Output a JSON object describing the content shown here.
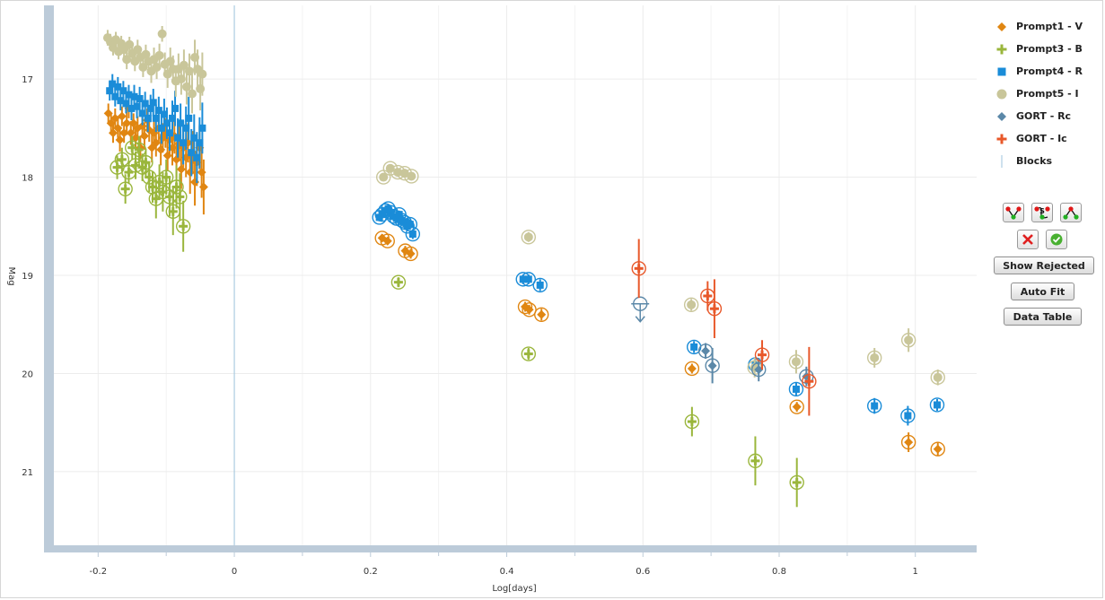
{
  "chart_data": {
    "type": "scatter",
    "title": "",
    "xlabel": "Log[days]",
    "ylabel": "Mag",
    "xlim": [
      -0.265,
      1.09
    ],
    "ylim": [
      21.75,
      16.25
    ],
    "y_inverted": true,
    "x_ticks": [
      "-0.2",
      "0",
      "0.2",
      "0.4",
      "0.6",
      "0.8",
      "1"
    ],
    "y_ticks": [
      "17",
      "18",
      "19",
      "20",
      "21"
    ],
    "grid": true,
    "legend_position": "right",
    "blocks_at": [
      0
    ],
    "series": [
      {
        "name": "Prompt1 - V",
        "color": "#e08612",
        "marker": "diamond",
        "points": [
          [
            -0.185,
            17.35,
            0.1
          ],
          [
            -0.181,
            17.45,
            0.1
          ],
          [
            -0.178,
            17.55,
            0.1
          ],
          [
            -0.175,
            17.4,
            0.1
          ],
          [
            -0.171,
            17.5,
            0.1
          ],
          [
            -0.168,
            17.62,
            0.12
          ],
          [
            -0.165,
            17.38,
            0.1
          ],
          [
            -0.162,
            17.55,
            0.1
          ],
          [
            -0.158,
            17.45,
            0.12
          ],
          [
            -0.155,
            17.3,
            0.1
          ],
          [
            -0.152,
            17.55,
            0.12
          ],
          [
            -0.148,
            17.45,
            0.1
          ],
          [
            -0.145,
            17.6,
            0.12
          ],
          [
            -0.142,
            17.5,
            0.12
          ],
          [
            -0.138,
            17.7,
            0.12
          ],
          [
            -0.135,
            17.48,
            0.12
          ],
          [
            -0.132,
            17.58,
            0.14
          ],
          [
            -0.128,
            17.42,
            0.12
          ],
          [
            -0.125,
            17.52,
            0.12
          ],
          [
            -0.121,
            17.7,
            0.15
          ],
          [
            -0.118,
            17.55,
            0.14
          ],
          [
            -0.115,
            17.65,
            0.14
          ],
          [
            -0.111,
            17.5,
            0.14
          ],
          [
            -0.108,
            17.72,
            0.16
          ],
          [
            -0.105,
            17.6,
            0.15
          ],
          [
            -0.101,
            17.55,
            0.15
          ],
          [
            -0.098,
            17.78,
            0.16
          ],
          [
            -0.095,
            17.62,
            0.16
          ],
          [
            -0.091,
            17.7,
            0.18
          ],
          [
            -0.088,
            17.58,
            0.18
          ],
          [
            -0.085,
            17.82,
            0.18
          ],
          [
            -0.081,
            17.66,
            0.18
          ],
          [
            -0.078,
            17.92,
            0.2
          ],
          [
            -0.075,
            17.7,
            0.2
          ],
          [
            -0.071,
            17.8,
            0.2
          ],
          [
            -0.068,
            17.65,
            0.2
          ],
          [
            -0.065,
            17.95,
            0.22
          ],
          [
            -0.061,
            17.75,
            0.22
          ],
          [
            -0.058,
            18.05,
            0.24
          ],
          [
            -0.055,
            17.85,
            0.24
          ],
          [
            -0.051,
            17.7,
            0.22
          ],
          [
            -0.048,
            17.95,
            0.26
          ],
          [
            -0.045,
            18.1,
            0.28
          ],
          [
            0.217,
            18.62,
            0.04
          ],
          [
            0.225,
            18.65,
            0.04
          ],
          [
            0.251,
            18.75,
            0.05
          ],
          [
            0.259,
            18.78,
            0.05
          ],
          [
            0.427,
            19.32,
            0.05
          ],
          [
            0.433,
            19.35,
            0.05
          ],
          [
            0.451,
            19.4,
            0.06
          ],
          [
            0.672,
            19.95,
            0.05
          ],
          [
            0.826,
            20.34,
            0.05
          ],
          [
            0.99,
            20.7,
            0.1
          ],
          [
            1.033,
            20.77,
            0.07
          ]
        ],
        "circled_from": 43
      },
      {
        "name": "Prompt3 - B",
        "color": "#9ab63c",
        "marker": "plus",
        "points": [
          [
            -0.172,
            17.9,
            0.12
          ],
          [
            -0.165,
            17.82,
            0.12
          ],
          [
            -0.16,
            18.12,
            0.15
          ],
          [
            -0.155,
            17.95,
            0.12
          ],
          [
            -0.15,
            17.7,
            0.12
          ],
          [
            -0.145,
            17.88,
            0.14
          ],
          [
            -0.14,
            17.72,
            0.14
          ],
          [
            -0.135,
            17.9,
            0.14
          ],
          [
            -0.13,
            17.85,
            0.14
          ],
          [
            -0.125,
            18.0,
            0.15
          ],
          [
            -0.12,
            18.1,
            0.16
          ],
          [
            -0.115,
            18.22,
            0.2
          ],
          [
            -0.11,
            18.05,
            0.18
          ],
          [
            -0.105,
            18.15,
            0.2
          ],
          [
            -0.1,
            18.0,
            0.18
          ],
          [
            -0.095,
            18.2,
            0.2
          ],
          [
            -0.09,
            18.35,
            0.24
          ],
          [
            -0.085,
            18.1,
            0.22
          ],
          [
            -0.08,
            18.2,
            0.24
          ],
          [
            -0.075,
            18.5,
            0.26
          ],
          [
            0.241,
            19.07,
            0.05
          ],
          [
            0.432,
            19.8,
            0.06
          ],
          [
            0.672,
            20.49,
            0.15
          ],
          [
            0.765,
            20.89,
            0.25
          ],
          [
            0.826,
            21.11,
            0.25
          ]
        ],
        "circled_from": 0
      },
      {
        "name": "Prompt4 - R",
        "color": "#1a8cd8",
        "marker": "square",
        "points": [
          [
            -0.183,
            17.12,
            0.1
          ],
          [
            -0.179,
            17.05,
            0.1
          ],
          [
            -0.175,
            17.18,
            0.1
          ],
          [
            -0.171,
            17.08,
            0.1
          ],
          [
            -0.167,
            17.22,
            0.1
          ],
          [
            -0.163,
            17.12,
            0.1
          ],
          [
            -0.159,
            17.25,
            0.1
          ],
          [
            -0.155,
            17.16,
            0.1
          ],
          [
            -0.151,
            17.3,
            0.12
          ],
          [
            -0.147,
            17.18,
            0.12
          ],
          [
            -0.143,
            17.28,
            0.12
          ],
          [
            -0.139,
            17.2,
            0.12
          ],
          [
            -0.135,
            17.35,
            0.12
          ],
          [
            -0.131,
            17.25,
            0.12
          ],
          [
            -0.127,
            17.4,
            0.14
          ],
          [
            -0.123,
            17.3,
            0.14
          ],
          [
            -0.119,
            17.24,
            0.14
          ],
          [
            -0.115,
            17.4,
            0.14
          ],
          [
            -0.111,
            17.32,
            0.14
          ],
          [
            -0.107,
            17.5,
            0.16
          ],
          [
            -0.103,
            17.36,
            0.16
          ],
          [
            -0.099,
            17.45,
            0.16
          ],
          [
            -0.095,
            17.55,
            0.18
          ],
          [
            -0.091,
            17.4,
            0.18
          ],
          [
            -0.087,
            17.3,
            0.18
          ],
          [
            -0.083,
            17.6,
            0.2
          ],
          [
            -0.079,
            17.45,
            0.2
          ],
          [
            -0.075,
            17.65,
            0.22
          ],
          [
            -0.071,
            17.5,
            0.22
          ],
          [
            -0.067,
            17.4,
            0.22
          ],
          [
            -0.063,
            17.75,
            0.24
          ],
          [
            -0.059,
            17.6,
            0.24
          ],
          [
            -0.055,
            17.8,
            0.26
          ],
          [
            -0.051,
            17.65,
            0.26
          ],
          [
            -0.047,
            17.5,
            0.26
          ],
          [
            0.213,
            18.41,
            0.04
          ],
          [
            0.217,
            18.38,
            0.04
          ],
          [
            0.222,
            18.34,
            0.04
          ],
          [
            0.226,
            18.32,
            0.04
          ],
          [
            0.23,
            18.36,
            0.04
          ],
          [
            0.234,
            18.4,
            0.04
          ],
          [
            0.238,
            18.42,
            0.04
          ],
          [
            0.242,
            18.38,
            0.04
          ],
          [
            0.246,
            18.44,
            0.04
          ],
          [
            0.25,
            18.46,
            0.04
          ],
          [
            0.254,
            18.5,
            0.04
          ],
          [
            0.258,
            18.48,
            0.04
          ],
          [
            0.262,
            18.58,
            0.05
          ],
          [
            0.424,
            19.04,
            0.05
          ],
          [
            0.432,
            19.04,
            0.05
          ],
          [
            0.449,
            19.1,
            0.06
          ],
          [
            0.675,
            19.73,
            0.06
          ],
          [
            0.765,
            19.91,
            0.06
          ],
          [
            0.825,
            20.16,
            0.07
          ],
          [
            0.94,
            20.33,
            0.08
          ],
          [
            0.989,
            20.43,
            0.1
          ],
          [
            1.032,
            20.32,
            0.06
          ]
        ],
        "circled_from": 35
      },
      {
        "name": "Prompt5 - I",
        "color": "#c9c69a",
        "marker": "circle",
        "points": [
          [
            -0.186,
            16.58,
            0.08
          ],
          [
            -0.182,
            16.62,
            0.08
          ],
          [
            -0.178,
            16.68,
            0.08
          ],
          [
            -0.174,
            16.6,
            0.08
          ],
          [
            -0.17,
            16.72,
            0.08
          ],
          [
            -0.166,
            16.64,
            0.08
          ],
          [
            -0.162,
            16.7,
            0.08
          ],
          [
            -0.158,
            16.8,
            0.1
          ],
          [
            -0.154,
            16.65,
            0.08
          ],
          [
            -0.15,
            16.74,
            0.1
          ],
          [
            -0.146,
            16.82,
            0.1
          ],
          [
            -0.142,
            16.7,
            0.1
          ],
          [
            -0.138,
            16.78,
            0.1
          ],
          [
            -0.134,
            16.88,
            0.1
          ],
          [
            -0.13,
            16.75,
            0.1
          ],
          [
            -0.126,
            16.82,
            0.1
          ],
          [
            -0.122,
            16.92,
            0.12
          ],
          [
            -0.118,
            16.8,
            0.12
          ],
          [
            -0.114,
            16.88,
            0.12
          ],
          [
            -0.11,
            16.76,
            0.12
          ],
          [
            -0.106,
            16.54,
            0.08
          ],
          [
            -0.102,
            16.85,
            0.12
          ],
          [
            -0.098,
            16.95,
            0.14
          ],
          [
            -0.094,
            16.82,
            0.14
          ],
          [
            -0.09,
            16.9,
            0.14
          ],
          [
            -0.086,
            17.02,
            0.16
          ],
          [
            -0.082,
            16.9,
            0.16
          ],
          [
            -0.078,
            17.0,
            0.16
          ],
          [
            -0.074,
            16.86,
            0.16
          ],
          [
            -0.07,
            17.08,
            0.18
          ],
          [
            -0.066,
            16.92,
            0.18
          ],
          [
            -0.062,
            17.15,
            0.2
          ],
          [
            -0.058,
            16.78,
            0.18
          ],
          [
            -0.054,
            16.9,
            0.2
          ],
          [
            -0.05,
            17.1,
            0.22
          ],
          [
            -0.047,
            16.95,
            0.22
          ],
          [
            0.219,
            18.0,
            0.04
          ],
          [
            0.229,
            17.91,
            0.04
          ],
          [
            0.24,
            17.95,
            0.04
          ],
          [
            0.25,
            17.96,
            0.04
          ],
          [
            0.26,
            17.99,
            0.04
          ],
          [
            0.432,
            18.61,
            0.05
          ],
          [
            0.671,
            19.3,
            0.06
          ],
          [
            0.764,
            19.94,
            0.1
          ],
          [
            0.825,
            19.88,
            0.12
          ],
          [
            0.94,
            19.84,
            0.1
          ],
          [
            0.99,
            19.66,
            0.12
          ],
          [
            1.033,
            20.04,
            0.08
          ]
        ],
        "circled_from": 36
      },
      {
        "name": "GORT - Rc",
        "color": "#5b88a8",
        "marker": "diamond",
        "points": [
          [
            0.692,
            19.77,
            0.08
          ],
          [
            0.702,
            19.92,
            0.18
          ],
          [
            0.77,
            19.96,
            0.12
          ],
          [
            0.84,
            20.03,
            0.1
          ]
        ],
        "upper_limits": [
          [
            0.596,
            19.29
          ]
        ],
        "circled_from": 0
      },
      {
        "name": "GORT - Ic",
        "color": "#e8582a",
        "marker": "plus",
        "points": [
          [
            0.594,
            18.93,
            0.3
          ],
          [
            0.695,
            19.21,
            0.15
          ],
          [
            0.705,
            19.34,
            0.3
          ],
          [
            0.775,
            19.81,
            0.15
          ],
          [
            0.844,
            20.08,
            0.35
          ]
        ],
        "circled_from": 0
      }
    ]
  },
  "legend": {
    "items": [
      {
        "label": "Prompt1 - V",
        "color": "#e08612",
        "icon": "diamond-icon"
      },
      {
        "label": "Prompt3 - B",
        "color": "#9ab63c",
        "icon": "plus-icon"
      },
      {
        "label": "Prompt4 - R",
        "color": "#1a8cd8",
        "icon": "square-icon"
      },
      {
        "label": "Prompt5 - I",
        "color": "#c9c69a",
        "icon": "circle-icon"
      },
      {
        "label": "GORT - Rc",
        "color": "#5b88a8",
        "icon": "diamond-icon"
      },
      {
        "label": "GORT - Ic",
        "color": "#e8582a",
        "icon": "plus-icon"
      },
      {
        "label": "Blocks",
        "color": "#9cc3dc",
        "icon": "vertical-line-icon"
      }
    ]
  },
  "tools": {
    "fit_icons": [
      "broken-power-law-icon",
      "smoothly-broken-icon",
      "rise-decay-icon"
    ],
    "reject_icon": "red-x-icon",
    "accept_icon": "green-check-icon",
    "show_rejected_label": "Show Rejected",
    "auto_fit_label": "Auto Fit",
    "data_table_label": "Data Table"
  }
}
